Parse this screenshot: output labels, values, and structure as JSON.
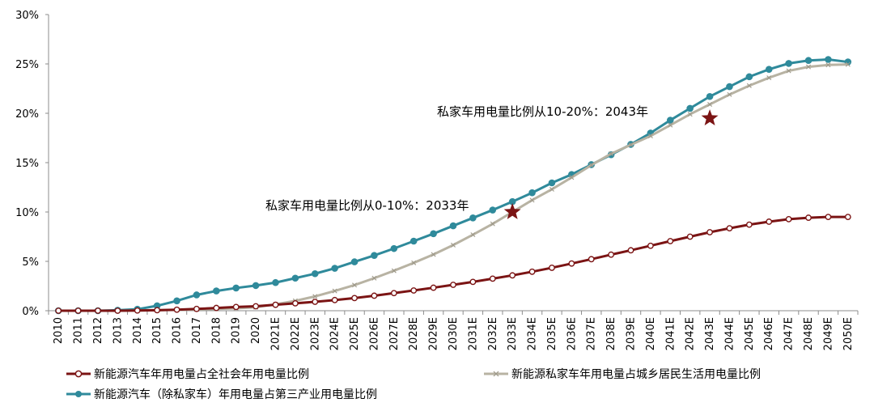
{
  "chart_data": {
    "type": "line",
    "title": "",
    "xlabel": "",
    "ylabel": "",
    "ylim": [
      0,
      30
    ],
    "y_ticks": [
      "0%",
      "5%",
      "10%",
      "15%",
      "20%",
      "25%",
      "30%"
    ],
    "y_tick_values": [
      0,
      5,
      10,
      15,
      20,
      25,
      30
    ],
    "grid": false,
    "legend_position": "bottom",
    "categories": [
      "2010",
      "2011",
      "2012",
      "2013",
      "2014",
      "2015",
      "2016",
      "2017",
      "2018",
      "2019",
      "2020",
      "2021E",
      "2022E",
      "2023E",
      "2024E",
      "2025E",
      "2026E",
      "2027E",
      "2028E",
      "2029E",
      "2030E",
      "2031E",
      "2032E",
      "2033E",
      "2034E",
      "2035E",
      "2036E",
      "2037E",
      "2038E",
      "2039E",
      "2040E",
      "2041E",
      "2042E",
      "2043E",
      "2044E",
      "2045E",
      "2046E",
      "2047E",
      "2048E",
      "2049E",
      "2050E"
    ],
    "series": [
      {
        "name": "新能源汽车年用电量占全社会年用电量比例",
        "color": "#7b1414",
        "marker": "open-circle",
        "values": [
          0,
          0,
          0,
          0,
          0.02,
          0.05,
          0.1,
          0.18,
          0.28,
          0.38,
          0.45,
          0.6,
          0.75,
          0.9,
          1.08,
          1.28,
          1.52,
          1.78,
          2.05,
          2.33,
          2.62,
          2.92,
          3.25,
          3.58,
          3.95,
          4.35,
          4.78,
          5.22,
          5.68,
          6.12,
          6.58,
          7.05,
          7.5,
          7.95,
          8.35,
          8.72,
          9.02,
          9.27,
          9.42,
          9.5,
          9.5
        ]
      },
      {
        "name": "新能源私家车年用电量占城乡居民生活用电量比例",
        "color": "#b8b3a3",
        "marker": "x",
        "values": [
          0,
          0,
          0,
          0,
          0.02,
          0.05,
          0.08,
          0.12,
          0.18,
          0.25,
          0.35,
          0.65,
          1.0,
          1.45,
          2.0,
          2.6,
          3.3,
          4.05,
          4.85,
          5.7,
          6.65,
          7.7,
          8.8,
          10.0,
          11.2,
          12.3,
          13.5,
          14.75,
          15.9,
          16.8,
          17.7,
          18.8,
          19.9,
          20.9,
          21.9,
          22.8,
          23.6,
          24.3,
          24.7,
          24.9,
          24.95
        ]
      },
      {
        "name": "新能源汽车（除私家车）年用电量占第三产业用电量比例",
        "color": "#2f8a9b",
        "marker": "filled-circle",
        "values": [
          0,
          0,
          0,
          0.05,
          0.15,
          0.5,
          1.0,
          1.6,
          2.0,
          2.3,
          2.55,
          2.85,
          3.3,
          3.75,
          4.3,
          4.95,
          5.6,
          6.3,
          7.05,
          7.8,
          8.6,
          9.4,
          10.2,
          11.05,
          11.95,
          12.95,
          13.8,
          14.8,
          15.8,
          16.85,
          18.0,
          19.3,
          20.5,
          21.7,
          22.7,
          23.7,
          24.45,
          25.05,
          25.35,
          25.45,
          25.2
        ]
      }
    ],
    "annotations": [
      {
        "text": "私家车用电量比例从0-10%：2033年",
        "x": "2033E",
        "y": 10.0,
        "marker": "star"
      },
      {
        "text": "私家车用电量比例从10-20%：2043年",
        "x": "2043E",
        "y": 19.5,
        "marker": "star"
      }
    ],
    "star_color": "#7b1414"
  }
}
